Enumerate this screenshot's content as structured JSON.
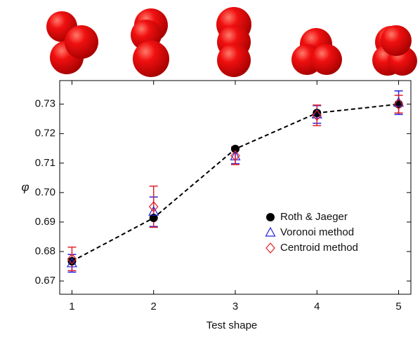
{
  "chart_data": {
    "type": "line",
    "xlabel": "Test shape",
    "ylabel": "φ",
    "x": [
      1,
      2,
      3,
      4,
      5
    ],
    "xlim": [
      0.85,
      5.15
    ],
    "xticks": [
      1,
      2,
      3,
      4,
      5
    ],
    "ylim": [
      0.6655,
      0.738
    ],
    "yticks": [
      0.67,
      0.68,
      0.69,
      {
        "value": 0.7,
        "label": "0.70"
      },
      0.71,
      0.72,
      0.73
    ],
    "legend": "lower right",
    "series": [
      {
        "name": "Roth & Jaeger",
        "color": "#000000",
        "marker": "circle",
        "linestyle": "dashed",
        "values": [
          0.6767,
          0.6914,
          0.7148,
          0.727,
          0.73
        ]
      },
      {
        "name": "Voronoi method",
        "color": "#2222dd",
        "marker": "triangle",
        "linestyle": "none",
        "values": [
          0.676,
          0.6935,
          0.7123,
          0.7265,
          0.7305
        ],
        "errors": [
          0.003,
          0.005,
          0.0025,
          0.003,
          0.004
        ]
      },
      {
        "name": "Centroid method",
        "color": "#e0202a",
        "marker": "diamond",
        "linestyle": "none",
        "values": [
          0.6775,
          0.6952,
          0.7125,
          0.7262,
          0.73
        ],
        "errors": [
          0.004,
          0.007,
          0.003,
          0.0035,
          0.003
        ]
      }
    ]
  }
}
